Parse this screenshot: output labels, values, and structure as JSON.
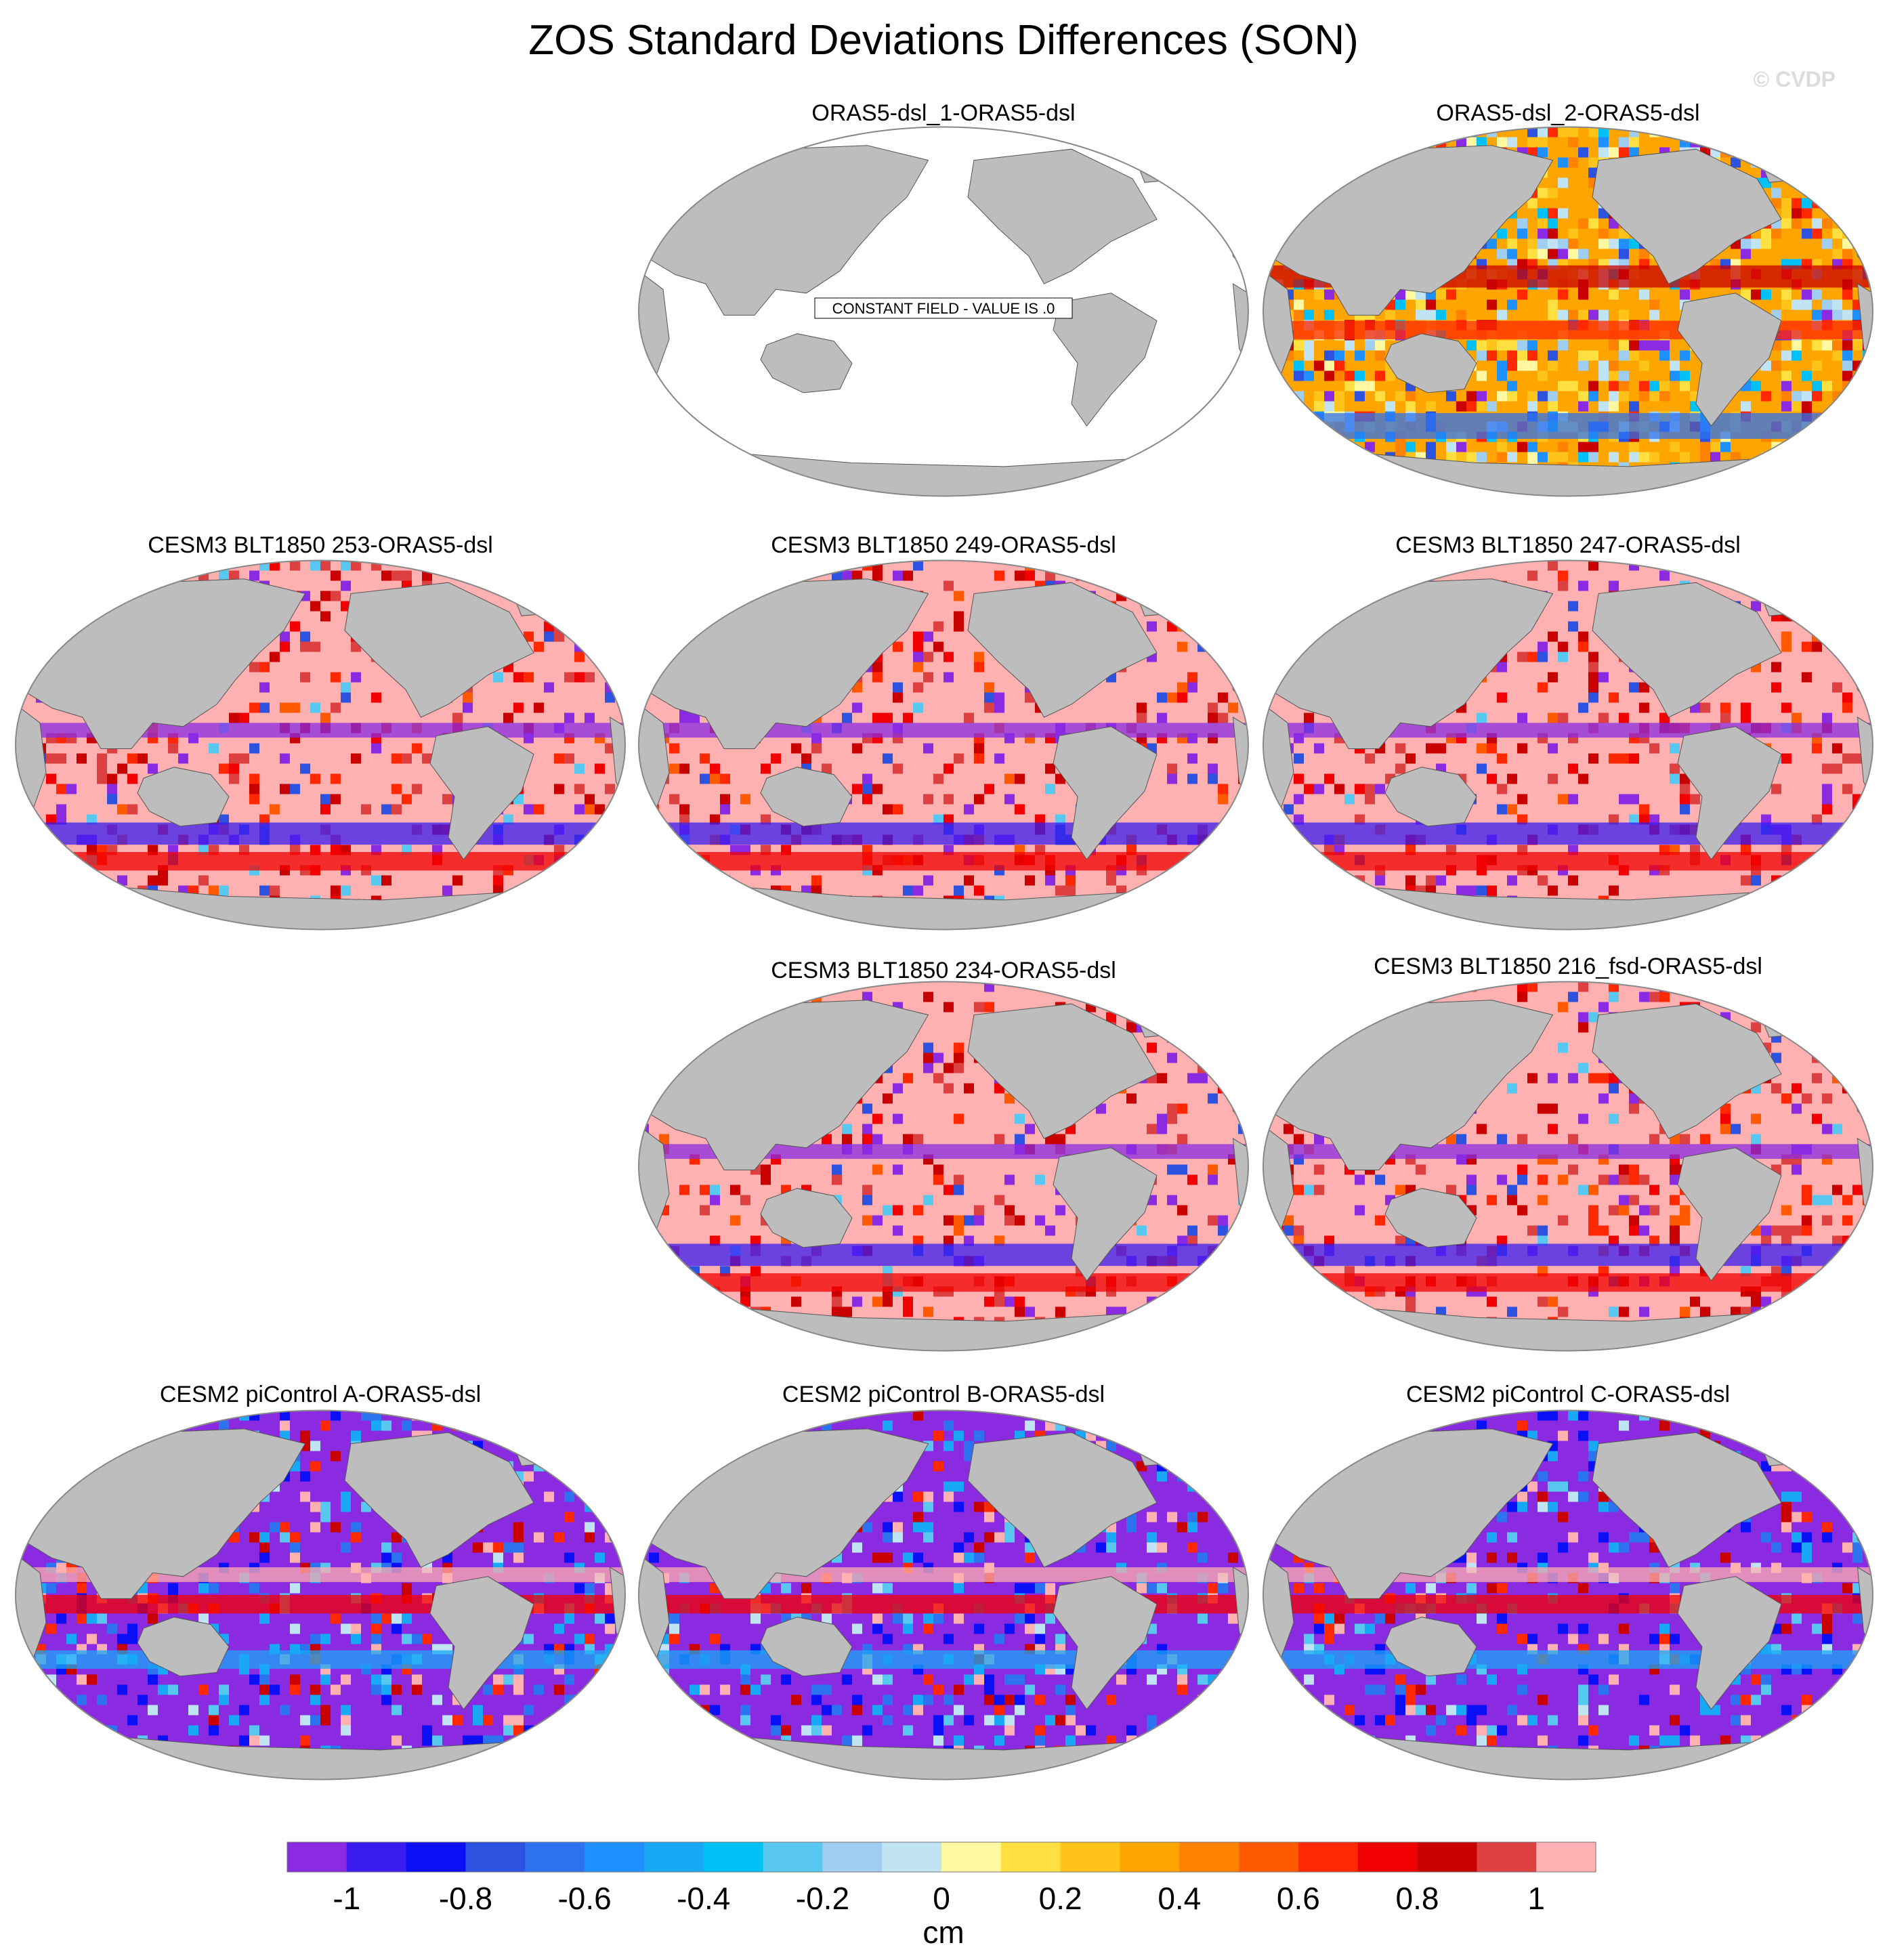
{
  "title": "ZOS Standard Deviations Differences (SON)",
  "copyright": "© CVDP",
  "colorbar": {
    "unit": "cm",
    "tick_labels": [
      "-1",
      "-0.8",
      "-0.6",
      "-0.4",
      "-0.2",
      "0",
      "0.2",
      "0.4",
      "0.6",
      "0.8",
      "1"
    ],
    "colors": [
      "#8a2be2",
      "#3a1cf0",
      "#0a0ff5",
      "#2e52e0",
      "#2d73f0",
      "#1e90ff",
      "#18a8f5",
      "#00c0f8",
      "#58c8f0",
      "#a0cef0",
      "#c0e4f4",
      "#fff8a0",
      "#ffe040",
      "#ffc31a",
      "#ffa500",
      "#ff8200",
      "#ff5a00",
      "#ff2800",
      "#f00000",
      "#c80000",
      "#dd4040",
      "#ffb0b0"
    ]
  },
  "chart_data": [
    {
      "type": "heatmap",
      "title": "ORAS5-dsl_1-ORAS5-dsl",
      "annotation": "CONSTANT FIELD - VALUE IS .0",
      "projection": "robinson",
      "value_range": [
        -1,
        1
      ],
      "unit": "cm",
      "pattern": "constant"
    },
    {
      "type": "heatmap",
      "title": "ORAS5-dsl_2-ORAS5-dsl",
      "projection": "robinson",
      "value_range": [
        -1,
        1
      ],
      "unit": "cm",
      "pattern": "mixed"
    },
    {
      "type": "heatmap",
      "title": "CESM3 BLT1850 253-ORAS5-dsl",
      "projection": "robinson",
      "value_range": [
        -1,
        1
      ],
      "unit": "cm",
      "pattern": "positive"
    },
    {
      "type": "heatmap",
      "title": "CESM3 BLT1850 249-ORAS5-dsl",
      "projection": "robinson",
      "value_range": [
        -1,
        1
      ],
      "unit": "cm",
      "pattern": "positive"
    },
    {
      "type": "heatmap",
      "title": "CESM3 BLT1850 247-ORAS5-dsl",
      "projection": "robinson",
      "value_range": [
        -1,
        1
      ],
      "unit": "cm",
      "pattern": "positive"
    },
    {
      "type": "heatmap",
      "title": "CESM3 BLT1850 234-ORAS5-dsl",
      "projection": "robinson",
      "value_range": [
        -1,
        1
      ],
      "unit": "cm",
      "pattern": "positive"
    },
    {
      "type": "heatmap",
      "title": "CESM3 BLT1850 216_fsd-ORAS5-dsl",
      "projection": "robinson",
      "value_range": [
        -1,
        1
      ],
      "unit": "cm",
      "pattern": "positive"
    },
    {
      "type": "heatmap",
      "title": "CESM2 piControl A-ORAS5-dsl",
      "projection": "robinson",
      "value_range": [
        -1,
        1
      ],
      "unit": "cm",
      "pattern": "negative"
    },
    {
      "type": "heatmap",
      "title": "CESM2 piControl B-ORAS5-dsl",
      "projection": "robinson",
      "value_range": [
        -1,
        1
      ],
      "unit": "cm",
      "pattern": "negative"
    },
    {
      "type": "heatmap",
      "title": "CESM2 piControl C-ORAS5-dsl",
      "projection": "robinson",
      "value_range": [
        -1,
        1
      ],
      "unit": "cm",
      "pattern": "negative"
    }
  ]
}
